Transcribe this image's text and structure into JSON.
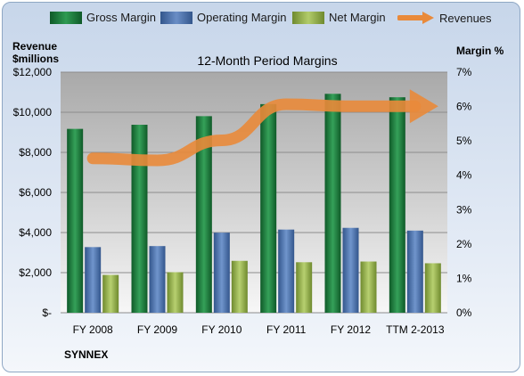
{
  "chart_data": {
    "type": "bar",
    "title": "12-Month Period Margins",
    "ylabel_left": [
      "Revenue",
      "$millions"
    ],
    "ylabel_right": "Margin %",
    "categories": [
      "FY 2008",
      "FY 2009",
      "FY 2010",
      "FY 2011",
      "FY 2012",
      "TTM 2-2013"
    ],
    "y_left": {
      "min": 0,
      "max": 12000,
      "ticks": [
        "$-",
        "$2,000",
        "$4,000",
        "$6,000",
        "$8,000",
        "$10,000",
        "$12,000"
      ]
    },
    "y_right": {
      "min": 0,
      "max": 7,
      "ticks": [
        "0%",
        "1%",
        "2%",
        "3%",
        "4%",
        "5%",
        "6%",
        "7%"
      ]
    },
    "series": [
      {
        "name": "Gross Margin",
        "axis": "right",
        "color": "#1e7a3c",
        "values": [
          5.35,
          5.47,
          5.72,
          6.07,
          6.37,
          6.27
        ]
      },
      {
        "name": "Operating Margin",
        "axis": "right",
        "color": "#4f73ad",
        "values": [
          1.91,
          1.94,
          2.33,
          2.42,
          2.47,
          2.39
        ]
      },
      {
        "name": "Net Margin",
        "axis": "right",
        "color": "#93b04a",
        "values": [
          1.1,
          1.18,
          1.51,
          1.47,
          1.49,
          1.44
        ]
      },
      {
        "name": "Revenues",
        "axis": "left",
        "type": "line",
        "color": "#e98a3a",
        "values": [
          7700,
          7600,
          8600,
          10400,
          10300,
          10300
        ]
      }
    ],
    "legend_position": "top",
    "grid": true
  },
  "footer": {
    "company": "SYNNEX"
  }
}
